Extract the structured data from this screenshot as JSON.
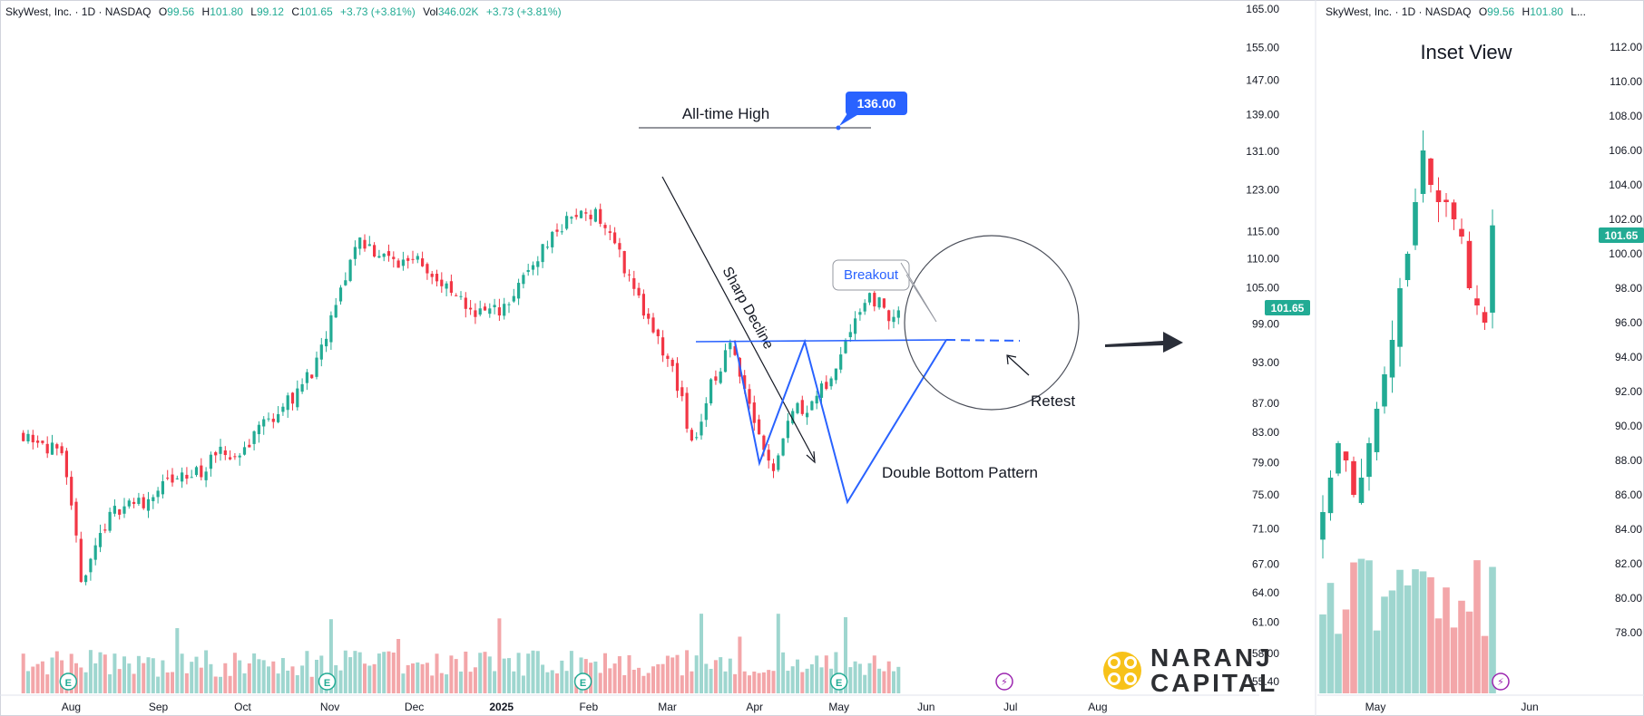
{
  "main": {
    "legend": {
      "symbol": "SkyWest, Inc. · 1D · NASDAQ",
      "o_label": "O",
      "o_value": "99.56",
      "h_label": "H",
      "h_value": "101.80",
      "l_label": "L",
      "l_value": "99.12",
      "c_label": "C",
      "c_value": "101.65",
      "change": "+3.73 (+3.81%)",
      "vol_label": "Vol",
      "vol_value": "346.02K",
      "vol_change": "+3.73 (+3.81%)"
    },
    "annotations": {
      "ath_label": "All-time High",
      "ath_price": "136.00",
      "sharp_decline": "Sharp Decline",
      "breakout": "Breakout",
      "retest": "Retest",
      "double_bottom": "Double Bottom Pattern"
    },
    "earnings_marker": "E",
    "bolt_marker": "⚡",
    "last_price": "101.65"
  },
  "inset": {
    "legend": "SkyWest, Inc. · 1D · NASDAQ",
    "o_label": "O",
    "o_value": "99.56",
    "h_label": "H",
    "h_value": "101.80",
    "trailing": "L...",
    "title": "Inset View",
    "last_price": "101.65"
  },
  "brand": {
    "line1": "NARANJ",
    "line2": "CAPITAL"
  },
  "colors": {
    "up": "#22ab94",
    "down": "#f23645",
    "pattern": "#2962ff",
    "up_volume": "#9ed6cf",
    "down_volume": "#f3a6a9"
  },
  "chart_data": [
    {
      "type": "candlestick",
      "title": "SkyWest, Inc. · 1D · NASDAQ",
      "y_scale": "log",
      "ylim": [
        55.4,
        165.0
      ],
      "y_ticks": [
        "165.00",
        "155.00",
        "147.00",
        "139.00",
        "131.00",
        "123.00",
        "115.00",
        "110.00",
        "105.00",
        "99.00",
        "93.00",
        "87.00",
        "83.00",
        "79.00",
        "75.00",
        "71.00",
        "67.00",
        "64.00",
        "61.00",
        "58.00",
        "55.40"
      ],
      "x_ticks": [
        "Aug",
        "Sep",
        "Oct",
        "Nov",
        "Dec",
        "2025",
        "Feb",
        "Mar",
        "Apr",
        "May",
        "Jun",
        "Jul",
        "Aug"
      ],
      "series": [
        {
          "name": "approximate daily closes (Jul 2024 – late May 2025)",
          "x": [
            "2024-07-15",
            "2024-07-22",
            "2024-07-29",
            "2024-08-05",
            "2024-08-12",
            "2024-08-19",
            "2024-08-26",
            "2024-09-02",
            "2024-09-09",
            "2024-09-16",
            "2024-09-23",
            "2024-09-30",
            "2024-10-07",
            "2024-10-14",
            "2024-10-21",
            "2024-10-28",
            "2024-11-04",
            "2024-11-11",
            "2024-11-18",
            "2024-11-25",
            "2024-12-02",
            "2024-12-09",
            "2024-12-16",
            "2024-12-23",
            "2024-12-30",
            "2025-01-06",
            "2025-01-13",
            "2025-01-20",
            "2025-01-27",
            "2025-02-03",
            "2025-02-10",
            "2025-02-18",
            "2025-02-24",
            "2025-03-03",
            "2025-03-10",
            "2025-03-17",
            "2025-03-24",
            "2025-03-31",
            "2025-04-07",
            "2025-04-14",
            "2025-04-21",
            "2025-04-28",
            "2025-05-05",
            "2025-05-12",
            "2025-05-19",
            "2025-05-23"
          ],
          "close": [
            83,
            82,
            79,
            65,
            71,
            74,
            74,
            76,
            77,
            78,
            80,
            80,
            84,
            86,
            89,
            93,
            103,
            114,
            111,
            109,
            111,
            106,
            103,
            101,
            101,
            104,
            110,
            115,
            118,
            119,
            113,
            104,
            97,
            92,
            81,
            90,
            96,
            86,
            78,
            86,
            87,
            90,
            99,
            104,
            100,
            101.65
          ]
        }
      ],
      "annotations": [
        {
          "text": "All-time High",
          "value": 136.0,
          "date": "2025-01-30"
        },
        {
          "text": "Sharp Decline"
        },
        {
          "text": "Double Bottom Pattern",
          "lows": [
            {
              "date": "2025-03-11",
              "value": 80
            },
            {
              "date": "2025-04-08",
              "value": 74
            }
          ],
          "neckline": 97
        },
        {
          "text": "Breakout",
          "date": "2025-05-02"
        },
        {
          "text": "Retest",
          "date": "2025-05-23"
        }
      ],
      "legend": "none"
    },
    {
      "type": "candlestick",
      "title": "Inset View",
      "ylim": [
        77,
        113
      ],
      "y_ticks": [
        "112.00",
        "110.00",
        "108.00",
        "106.00",
        "104.00",
        "102.00",
        "100.00",
        "98.00",
        "96.00",
        "94.00",
        "92.00",
        "90.00",
        "88.00",
        "86.00",
        "84.00",
        "82.00",
        "80.00",
        "78.00"
      ],
      "x_ticks": [
        "May",
        "Jun"
      ],
      "series": [
        {
          "name": "inset daily closes (mid-Apr – late May 2025)",
          "close": [
            85,
            87,
            89,
            88,
            86,
            87,
            89,
            91,
            93,
            95,
            98,
            100,
            103,
            106,
            104,
            103,
            103,
            102,
            101,
            98,
            97,
            96,
            101.65
          ]
        }
      ]
    }
  ]
}
